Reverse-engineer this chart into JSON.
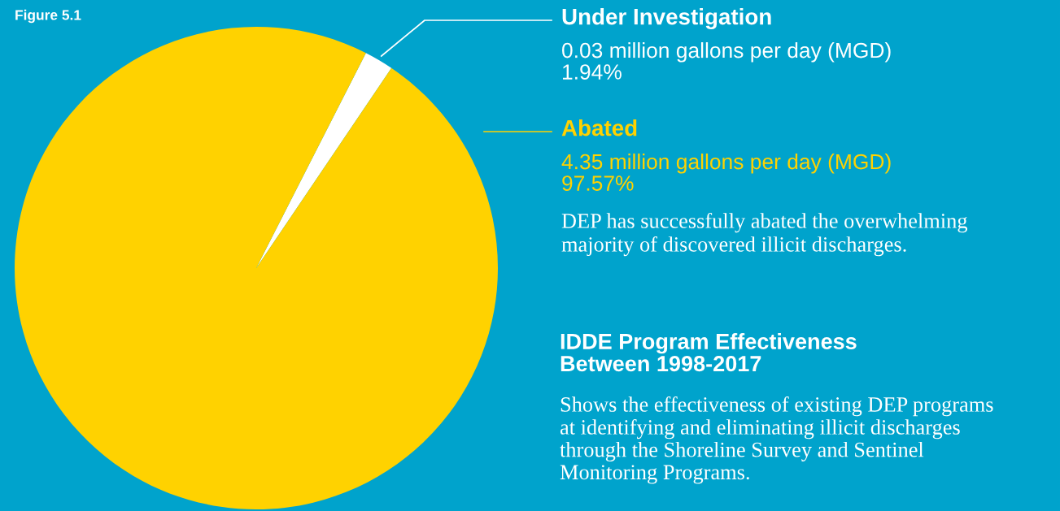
{
  "chart_data": {
    "type": "pie",
    "title": "Figure 5.1",
    "subtitle": "IDDE Program Effectiveness\nBetween 1998-2017",
    "categories": [
      "Under Investigation",
      "Abated"
    ],
    "values": [
      1.94,
      97.57
    ],
    "colors": [
      "#ffffff",
      "#ffd200"
    ],
    "value_labels": [
      "0.03 million gallons per day (MGD)\n1.94%",
      "4.35 million gallons per day (MGD)\n97.57%"
    ],
    "annotations": [
      "DEP has successfully abated the overwhelming\nmajority of discovered illicit discharges.",
      "Shows the effectiveness of existing DEP programs\nat identifying and eliminating illicit discharges\nthrough the Shoreline Survey and Sentinel\nMonitoring Programs."
    ]
  }
}
